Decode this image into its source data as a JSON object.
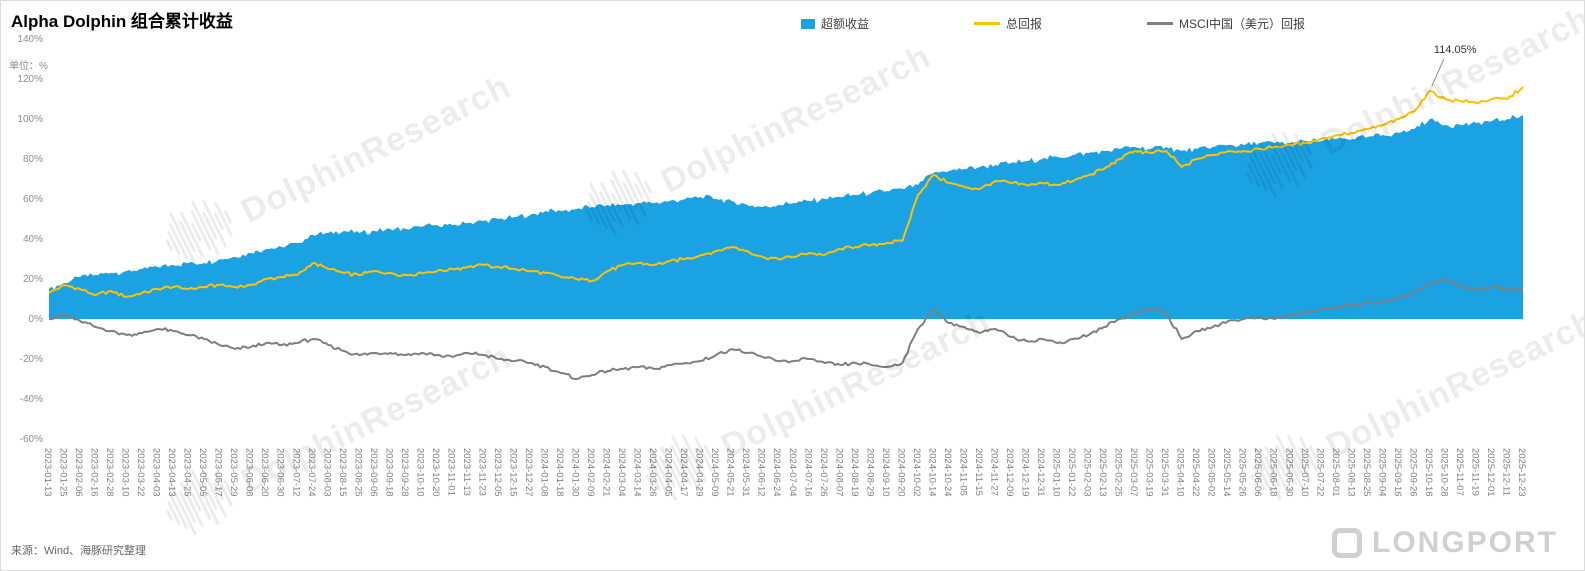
{
  "title": "Alpha Dolphin 组合累计收益",
  "unit_label": "单位：%",
  "source": "来源：Wind、海豚研究整理",
  "watermark": {
    "text": "DolphinResearch"
  },
  "logo_text": "LONGPORT",
  "legend": [
    {
      "label": "超额收益",
      "color": "#1BA2E3",
      "marker": "area"
    },
    {
      "label": "总回报",
      "color": "#FFC000",
      "marker": "line"
    },
    {
      "label": "MSCI中国（美元）回报",
      "color": "#7F7F7F",
      "marker": "line"
    }
  ],
  "chart_data": {
    "type": "area",
    "title": "Alpha Dolphin 组合累计收益",
    "xlabel": "",
    "ylabel": "单位：%",
    "ylim": [
      -60,
      140
    ],
    "ytick_step": 20,
    "grid": false,
    "legend_position": "top",
    "annotation": {
      "text": "114.05%",
      "series": "总回报",
      "x": "2025-10-16",
      "value": 114.05
    },
    "x": [
      "2023-01-13",
      "2023-01-25",
      "2023-02-06",
      "2023-02-16",
      "2023-02-28",
      "2023-03-10",
      "2023-03-22",
      "2023-04-03",
      "2023-04-13",
      "2023-04-25",
      "2023-05-05",
      "2023-05-17",
      "2023-05-29",
      "2023-06-08",
      "2023-06-20",
      "2023-06-30",
      "2023-07-12",
      "2023-07-24",
      "2023-08-03",
      "2023-08-15",
      "2023-08-25",
      "2023-09-06",
      "2023-09-18",
      "2023-09-28",
      "2023-10-10",
      "2023-10-20",
      "2023-11-01",
      "2023-11-13",
      "2023-11-23",
      "2023-12-05",
      "2023-12-15",
      "2023-12-27",
      "2024-01-08",
      "2024-01-18",
      "2024-01-30",
      "2024-02-09",
      "2024-02-21",
      "2024-03-04",
      "2024-03-14",
      "2024-03-26",
      "2024-04-05",
      "2024-04-17",
      "2024-04-29",
      "2024-05-09",
      "2024-05-21",
      "2024-05-31",
      "2024-06-12",
      "2024-06-24",
      "2024-07-04",
      "2024-07-16",
      "2024-07-26",
      "2024-08-07",
      "2024-08-19",
      "2024-08-29",
      "2024-09-10",
      "2024-09-20",
      "2024-10-02",
      "2024-10-14",
      "2024-10-24",
      "2024-11-05",
      "2024-11-15",
      "2024-11-27",
      "2024-12-09",
      "2024-12-19",
      "2024-12-31",
      "2025-01-10",
      "2025-01-22",
      "2025-02-03",
      "2025-02-13",
      "2025-02-25",
      "2025-03-07",
      "2025-03-19",
      "2025-03-31",
      "2025-04-10",
      "2025-04-22",
      "2025-05-02",
      "2025-05-14",
      "2025-05-26",
      "2025-06-06",
      "2025-06-18",
      "2025-06-30",
      "2025-07-10",
      "2025-07-22",
      "2025-08-01",
      "2025-08-13",
      "2025-08-25",
      "2025-09-04",
      "2025-09-16",
      "2025-09-26",
      "2025-10-16",
      "2025-10-28",
      "2025-11-07",
      "2025-11-19",
      "2025-12-01",
      "2025-12-11",
      "2025-12-23"
    ],
    "series": [
      {
        "name": "超额收益",
        "type": "area",
        "color": "#1BA2E3",
        "values": [
          15,
          18,
          21,
          22,
          23,
          24,
          25,
          26,
          27,
          28,
          28,
          30,
          31,
          33,
          35,
          36,
          38,
          42,
          43,
          44,
          43,
          44,
          45,
          45,
          46,
          47,
          47,
          48,
          49,
          50,
          51,
          52,
          54,
          54,
          55,
          56,
          57,
          57,
          58,
          58,
          59,
          60,
          61,
          60,
          59,
          57,
          56,
          57,
          58,
          59,
          60,
          61,
          62,
          63,
          64,
          65,
          67,
          73,
          74,
          75,
          76,
          77,
          78,
          79,
          80,
          81,
          82,
          83,
          84,
          85,
          86,
          85,
          86,
          84,
          85,
          86,
          87,
          87,
          88,
          88,
          88,
          89,
          89,
          90,
          90,
          91,
          92,
          93,
          95,
          100,
          97,
          97,
          98,
          99,
          100,
          102
        ]
      },
      {
        "name": "总回报",
        "type": "line",
        "color": "#FFC000",
        "values": [
          13,
          17,
          15,
          12,
          14,
          11,
          13,
          15,
          16,
          15,
          16,
          17,
          16,
          17,
          20,
          21,
          22,
          28,
          25,
          23,
          22,
          24,
          23,
          22,
          23,
          24,
          25,
          26,
          27,
          26,
          25,
          24,
          23,
          21,
          20,
          19,
          24,
          27,
          28,
          27,
          29,
          30,
          32,
          34,
          36,
          34,
          31,
          30,
          31,
          33,
          32,
          35,
          36,
          37,
          38,
          39,
          62,
          72,
          68,
          66,
          65,
          69,
          68,
          67,
          68,
          67,
          69,
          72,
          75,
          80,
          84,
          83,
          84,
          76,
          80,
          82,
          84,
          84,
          85,
          86,
          87,
          88,
          90,
          92,
          93,
          95,
          97,
          100,
          104,
          114.05,
          110,
          109,
          108,
          110,
          110,
          116
        ]
      },
      {
        "name": "MSCI中国（美元）回报",
        "type": "line",
        "color": "#7F7F7F",
        "values": [
          0,
          2,
          -1,
          -4,
          -6,
          -8,
          -7,
          -5,
          -6,
          -8,
          -10,
          -13,
          -15,
          -14,
          -12,
          -13,
          -12,
          -10,
          -13,
          -16,
          -18,
          -17,
          -17,
          -18,
          -17,
          -18,
          -19,
          -17,
          -18,
          -20,
          -21,
          -22,
          -24,
          -27,
          -30,
          -28,
          -26,
          -25,
          -24,
          -25,
          -23,
          -22,
          -21,
          -18,
          -15,
          -17,
          -19,
          -21,
          -21,
          -20,
          -22,
          -23,
          -22,
          -23,
          -24,
          -22,
          -5,
          5,
          -2,
          -4,
          -7,
          -5,
          -9,
          -11,
          -10,
          -12,
          -10,
          -8,
          -4,
          0,
          3,
          5,
          3,
          -10,
          -6,
          -4,
          -1,
          0,
          1,
          0,
          2,
          3,
          5,
          6,
          7,
          8,
          9,
          11,
          13,
          18,
          20,
          16,
          15,
          16,
          15,
          15
        ]
      }
    ]
  }
}
